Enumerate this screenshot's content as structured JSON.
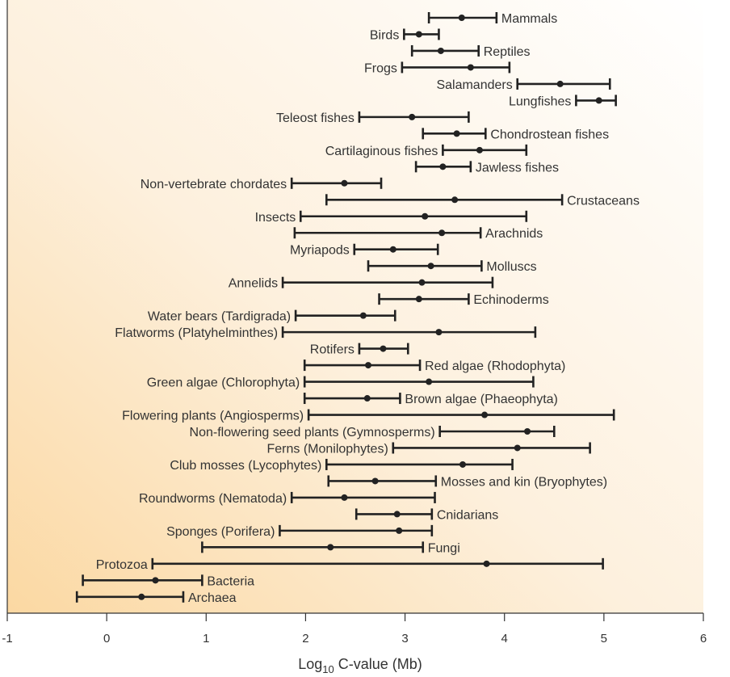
{
  "chart_data": {
    "type": "range",
    "xlabel": "Log10 C-value (Mb)",
    "xlabel_main": "Log",
    "xlabel_sub": "10",
    "xlabel_rest": " C-value (Mb)",
    "xlim": [
      -1,
      6
    ],
    "xticks": [
      -1,
      0,
      1,
      2,
      3,
      4,
      5,
      6
    ],
    "xtick_labels": [
      "-1",
      "0",
      "1",
      "2",
      "3",
      "4",
      "5",
      "6"
    ],
    "background": "gradient-orange-to-white",
    "series": [
      {
        "name": "Mammals",
        "min": 3.24,
        "max": 3.92,
        "mean": 3.57,
        "label_side": "right"
      },
      {
        "name": "Birds",
        "min": 2.99,
        "max": 3.34,
        "mean": 3.14,
        "label_side": "left"
      },
      {
        "name": "Reptiles",
        "min": 3.07,
        "max": 3.74,
        "mean": 3.36,
        "label_side": "right"
      },
      {
        "name": "Frogs",
        "min": 2.97,
        "max": 4.05,
        "mean": 3.66,
        "label_side": "left"
      },
      {
        "name": "Salamanders",
        "min": 4.13,
        "max": 5.06,
        "mean": 4.56,
        "label_side": "left"
      },
      {
        "name": "Lungfishes",
        "min": 4.72,
        "max": 5.12,
        "mean": 4.95,
        "label_side": "left"
      },
      {
        "name": "Teleost fishes",
        "min": 2.54,
        "max": 3.64,
        "mean": 3.07,
        "label_side": "left"
      },
      {
        "name": "Chondrostean fishes",
        "min": 3.18,
        "max": 3.81,
        "mean": 3.52,
        "label_side": "right"
      },
      {
        "name": "Cartilaginous fishes",
        "min": 3.38,
        "max": 4.22,
        "mean": 3.75,
        "label_side": "left"
      },
      {
        "name": "Jawless fishes",
        "min": 3.11,
        "max": 3.66,
        "mean": 3.38,
        "label_side": "right"
      },
      {
        "name": "Non-vertebrate chordates",
        "min": 1.86,
        "max": 2.76,
        "mean": 2.39,
        "label_side": "left"
      },
      {
        "name": "Crustaceans",
        "min": 2.21,
        "max": 4.58,
        "mean": 3.5,
        "label_side": "right"
      },
      {
        "name": "Insects",
        "min": 1.95,
        "max": 4.22,
        "mean": 3.2,
        "label_side": "left"
      },
      {
        "name": "Arachnids",
        "min": 1.89,
        "max": 3.76,
        "mean": 3.37,
        "label_side": "right"
      },
      {
        "name": "Myriapods",
        "min": 2.49,
        "max": 3.33,
        "mean": 2.88,
        "label_side": "left"
      },
      {
        "name": "Molluscs",
        "min": 2.63,
        "max": 3.77,
        "mean": 3.26,
        "label_side": "right"
      },
      {
        "name": "Annelids",
        "min": 1.77,
        "max": 3.88,
        "mean": 3.17,
        "label_side": "left"
      },
      {
        "name": "Echinoderms",
        "min": 2.74,
        "max": 3.64,
        "mean": 3.14,
        "label_side": "right"
      },
      {
        "name": "Water bears (Tardigrada)",
        "min": 1.9,
        "max": 2.9,
        "mean": 2.58,
        "label_side": "left"
      },
      {
        "name": "Flatworms (Platyhelminthes)",
        "min": 1.77,
        "max": 4.31,
        "mean": 3.34,
        "label_side": "left"
      },
      {
        "name": "Rotifers",
        "min": 2.54,
        "max": 3.03,
        "mean": 2.78,
        "label_side": "left"
      },
      {
        "name": "Red algae (Rhodophyta)",
        "min": 1.99,
        "max": 3.15,
        "mean": 2.63,
        "label_side": "right"
      },
      {
        "name": "Green algae (Chlorophyta)",
        "min": 1.99,
        "max": 4.29,
        "mean": 3.24,
        "label_side": "left"
      },
      {
        "name": "Brown algae (Phaeophyta)",
        "min": 1.99,
        "max": 2.95,
        "mean": 2.62,
        "label_side": "right"
      },
      {
        "name": "Flowering plants (Angiosperms)",
        "min": 2.03,
        "max": 5.1,
        "mean": 3.8,
        "label_side": "left"
      },
      {
        "name": "Non-flowering seed plants (Gymnosperms)",
        "min": 3.35,
        "max": 4.5,
        "mean": 4.23,
        "label_side": "left"
      },
      {
        "name": "Ferns (Monilophytes)",
        "min": 2.88,
        "max": 4.86,
        "mean": 4.13,
        "label_side": "left"
      },
      {
        "name": "Club mosses (Lycophytes)",
        "min": 2.21,
        "max": 4.08,
        "mean": 3.58,
        "label_side": "left"
      },
      {
        "name": "Mosses and kin (Bryophytes)",
        "min": 2.23,
        "max": 3.31,
        "mean": 2.7,
        "label_side": "right"
      },
      {
        "name": "Roundworms (Nematoda)",
        "min": 1.86,
        "max": 3.3,
        "mean": 2.39,
        "label_side": "left"
      },
      {
        "name": "Cnidarians",
        "min": 2.51,
        "max": 3.27,
        "mean": 2.92,
        "label_side": "right"
      },
      {
        "name": "Sponges (Porifera)",
        "min": 1.74,
        "max": 3.27,
        "mean": 2.94,
        "label_side": "left"
      },
      {
        "name": "Fungi",
        "min": 0.96,
        "max": 3.18,
        "mean": 2.25,
        "label_side": "right"
      },
      {
        "name": "Protozoa",
        "min": 0.46,
        "max": 4.99,
        "mean": 3.82,
        "label_side": "left"
      },
      {
        "name": "Bacteria",
        "min": -0.24,
        "max": 0.96,
        "mean": 0.49,
        "label_side": "right"
      },
      {
        "name": "Archaea",
        "min": -0.3,
        "max": 0.77,
        "mean": 0.35,
        "label_side": "right"
      }
    ]
  }
}
